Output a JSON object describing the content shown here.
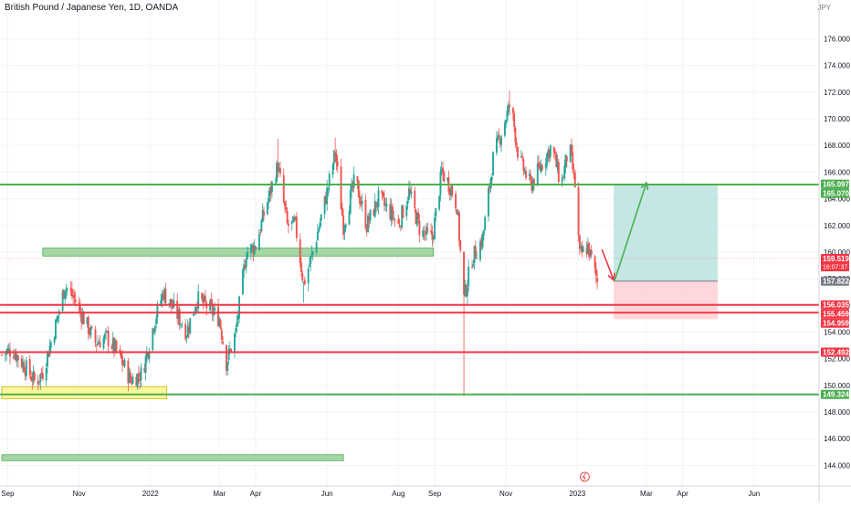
{
  "header": {
    "title": "British Pound / Japanese Yen, 1D, OANDA",
    "currency": "JPY"
  },
  "colors": {
    "up": "#26a69a",
    "down": "#ef5350",
    "green_line": "#4caf50",
    "red_line": "#f23645",
    "grid": "#f0f3fa",
    "zone_green": "#a5d6a7",
    "zone_yellow": "#fff59d",
    "target_zone": "#b2dfdb",
    "stop_zone": "#ffcdd2",
    "tag_dark": "#787b86"
  },
  "chart_data": {
    "type": "candlestick",
    "title": "British Pound / Japanese Yen, 1D, OANDA",
    "y_unit": "JPY",
    "ylim": [
      143,
      178.5
    ],
    "y_ticks": [
      144,
      146,
      148,
      150,
      152,
      154,
      156,
      158,
      160,
      162,
      164,
      166,
      168,
      170,
      172,
      174,
      176
    ],
    "y_tick_labels": [
      "144.000",
      "146.000",
      "148.000",
      "150.000",
      "152.000",
      "154.000",
      "156.000",
      "158.000",
      "160.000",
      "162.000",
      "164.000",
      "166.000",
      "168.000",
      "170.000",
      "172.000",
      "174.000",
      "176.000"
    ],
    "x_ticks": [
      {
        "label": "Sep",
        "date": "2021-09-01"
      },
      {
        "label": "Nov",
        "date": "2021-11-01"
      },
      {
        "label": "2022",
        "date": "2022-01-01"
      },
      {
        "label": "Mar",
        "date": "2022-03-01"
      },
      {
        "label": "Apr",
        "date": "2022-04-01"
      },
      {
        "label": "Jun",
        "date": "2022-06-01"
      },
      {
        "label": "Aug",
        "date": "2022-08-01"
      },
      {
        "label": "Sep",
        "date": "2022-09-01"
      },
      {
        "label": "Nov",
        "date": "2022-11-01"
      },
      {
        "label": "2023",
        "date": "2023-01-01"
      },
      {
        "label": "Mar",
        "date": "2023-03-01"
      },
      {
        "label": "Apr",
        "date": "2023-04-01"
      },
      {
        "label": "Jun",
        "date": "2023-06-01"
      }
    ],
    "price_path": [
      [
        "2021-08-27",
        152.3
      ],
      [
        "2021-09-05",
        152.7
      ],
      [
        "2021-09-15",
        151.5
      ],
      [
        "2021-09-25",
        150.2
      ],
      [
        "2021-10-01",
        151.0
      ],
      [
        "2021-10-12",
        154.5
      ],
      [
        "2021-10-20",
        157.5
      ],
      [
        "2021-10-28",
        156.5
      ],
      [
        "2021-11-05",
        155.0
      ],
      [
        "2021-11-15",
        153.2
      ],
      [
        "2021-11-25",
        153.6
      ],
      [
        "2021-12-05",
        152.3
      ],
      [
        "2021-12-15",
        150.4
      ],
      [
        "2021-12-25",
        150.9
      ],
      [
        "2022-01-05",
        155.0
      ],
      [
        "2022-01-12",
        157.0
      ],
      [
        "2022-01-22",
        155.6
      ],
      [
        "2022-02-01",
        154.0
      ],
      [
        "2022-02-10",
        156.5
      ],
      [
        "2022-02-20",
        155.8
      ],
      [
        "2022-03-01",
        155.0
      ],
      [
        "2022-03-07",
        151.7
      ],
      [
        "2022-03-15",
        154.0
      ],
      [
        "2022-03-24",
        160.0
      ],
      [
        "2022-04-01",
        160.5
      ],
      [
        "2022-04-10",
        163.5
      ],
      [
        "2022-04-20",
        166.5
      ],
      [
        "2022-04-28",
        162.0
      ],
      [
        "2022-05-05",
        162.0
      ],
      [
        "2022-05-12",
        157.6
      ],
      [
        "2022-05-20",
        160.0
      ],
      [
        "2022-06-01",
        164.5
      ],
      [
        "2022-06-08",
        167.5
      ],
      [
        "2022-06-15",
        162.0
      ],
      [
        "2022-06-25",
        165.5
      ],
      [
        "2022-07-05",
        162.0
      ],
      [
        "2022-07-15",
        164.0
      ],
      [
        "2022-07-25",
        163.0
      ],
      [
        "2022-08-01",
        162.0
      ],
      [
        "2022-08-10",
        164.5
      ],
      [
        "2022-08-20",
        161.5
      ],
      [
        "2022-08-30",
        161.0
      ],
      [
        "2022-09-07",
        166.0
      ],
      [
        "2022-09-14",
        165.0
      ],
      [
        "2022-09-20",
        163.5
      ],
      [
        "2022-09-26",
        156.5
      ],
      [
        "2022-10-03",
        159.5
      ],
      [
        "2022-10-12",
        161.0
      ],
      [
        "2022-10-21",
        167.0
      ],
      [
        "2022-10-28",
        169.0
      ],
      [
        "2022-11-05",
        171.2
      ],
      [
        "2022-11-12",
        167.0
      ],
      [
        "2022-11-22",
        165.0
      ],
      [
        "2022-12-01",
        166.5
      ],
      [
        "2022-12-10",
        168.0
      ],
      [
        "2022-12-18",
        165.0
      ],
      [
        "2022-12-25",
        168.0
      ],
      [
        "2022-12-30",
        165.0
      ],
      [
        "2023-01-03",
        159.7
      ],
      [
        "2023-01-10",
        160.4
      ],
      [
        "2023-01-18",
        157.8
      ]
    ],
    "notable_extremes": {
      "high": 172.1,
      "low": 149.2
    },
    "horizontal_levels": [
      {
        "value": 165.07,
        "color": "green"
      },
      {
        "value": 156.035,
        "color": "red"
      },
      {
        "value": 155.459,
        "color": "red"
      },
      {
        "value": 152.492,
        "color": "red"
      },
      {
        "value": 149.324,
        "color": "green"
      }
    ],
    "zones": [
      {
        "from": "2021-10-01",
        "to": "2022-08-31",
        "low": 159.7,
        "high": 160.3,
        "color": "green"
      },
      {
        "from": "2021-08-27",
        "to": "2022-01-15",
        "low": 149.0,
        "high": 149.9,
        "color": "yellow"
      },
      {
        "from": "2021-08-27",
        "to": "2022-06-15",
        "low": 144.35,
        "high": 144.8,
        "color": "green"
      }
    ],
    "position": {
      "entry": 157.822,
      "target": 165.097,
      "stop": 154.959,
      "from": "2023-02-01",
      "to": "2023-05-01"
    },
    "arrows": [
      {
        "from": [
          "2023-01-22",
          160.2
        ],
        "to": [
          "2023-02-01",
          157.9
        ],
        "color": "red"
      },
      {
        "from": [
          "2023-02-02",
          157.9
        ],
        "to": [
          "2023-03-01",
          165.2
        ],
        "color": "green"
      }
    ],
    "price_tags": [
      {
        "value": 165.097,
        "label": "165.097",
        "color": "green"
      },
      {
        "value": 165.07,
        "label": "165.070",
        "color": "green"
      },
      {
        "value": 159.519,
        "label": "159.519",
        "sub": "16:07:37",
        "color": "red"
      },
      {
        "value": 157.822,
        "label": "157.822",
        "color": "gray"
      },
      {
        "value": 156.035,
        "label": "156.035",
        "color": "red"
      },
      {
        "value": 155.459,
        "label": "155.459",
        "color": "red"
      },
      {
        "value": 154.959,
        "label": "154.959",
        "color": "red"
      },
      {
        "value": 152.492,
        "label": "152.492",
        "color": "red"
      },
      {
        "value": 149.324,
        "label": "149.324",
        "color": "green"
      }
    ],
    "last_price": 159.519
  }
}
